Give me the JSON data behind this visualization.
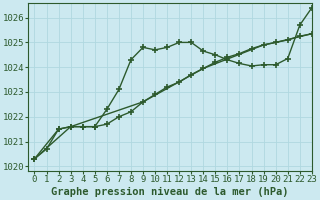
{
  "title": "Graphe pression niveau de la mer (hPa)",
  "bg_color": "#cce9f0",
  "grid_color": "#b0d8e0",
  "line_color": "#2d5a2d",
  "xlim": [
    -0.5,
    23
  ],
  "ylim": [
    1019.8,
    1026.6
  ],
  "yticks": [
    1020,
    1021,
    1022,
    1023,
    1024,
    1025,
    1026
  ],
  "xticks": [
    0,
    1,
    2,
    3,
    4,
    5,
    6,
    7,
    8,
    9,
    10,
    11,
    12,
    13,
    14,
    15,
    16,
    17,
    18,
    19,
    20,
    21,
    22,
    23
  ],
  "line1_x": [
    0,
    1,
    2,
    3,
    4,
    5,
    6,
    7,
    8,
    9,
    10,
    11,
    12,
    13,
    14,
    15,
    16,
    17,
    18,
    19,
    20,
    21,
    22,
    23
  ],
  "line1_y": [
    1020.3,
    1020.7,
    1021.5,
    1021.6,
    1021.6,
    1021.6,
    1022.3,
    1023.1,
    1024.3,
    1024.8,
    1024.7,
    1024.8,
    1025.0,
    1025.0,
    1024.65,
    1024.5,
    1024.3,
    1024.15,
    1024.05,
    1024.1,
    1024.1,
    1024.35,
    1025.7,
    1026.4
  ],
  "line2_x": [
    0,
    2,
    3,
    4,
    5,
    6,
    7,
    8,
    9,
    10,
    11,
    12,
    13,
    14,
    15,
    16,
    17,
    18,
    19,
    20,
    21,
    22,
    23
  ],
  "line2_y": [
    1020.3,
    1021.5,
    1021.6,
    1021.6,
    1021.6,
    1021.7,
    1022.0,
    1022.2,
    1022.6,
    1022.9,
    1023.2,
    1023.4,
    1023.7,
    1023.95,
    1024.2,
    1024.4,
    1024.55,
    1024.75,
    1024.9,
    1025.0,
    1025.1,
    1025.25,
    1025.35
  ],
  "line3_x": [
    0,
    3,
    9,
    14,
    19,
    20,
    23
  ],
  "line3_y": [
    1020.3,
    1021.6,
    1022.6,
    1023.95,
    1024.9,
    1025.0,
    1025.35
  ],
  "marker": "+",
  "marker_size": 5,
  "line_width": 1.0,
  "tick_fontsize": 6.5,
  "title_fontsize": 7.5
}
